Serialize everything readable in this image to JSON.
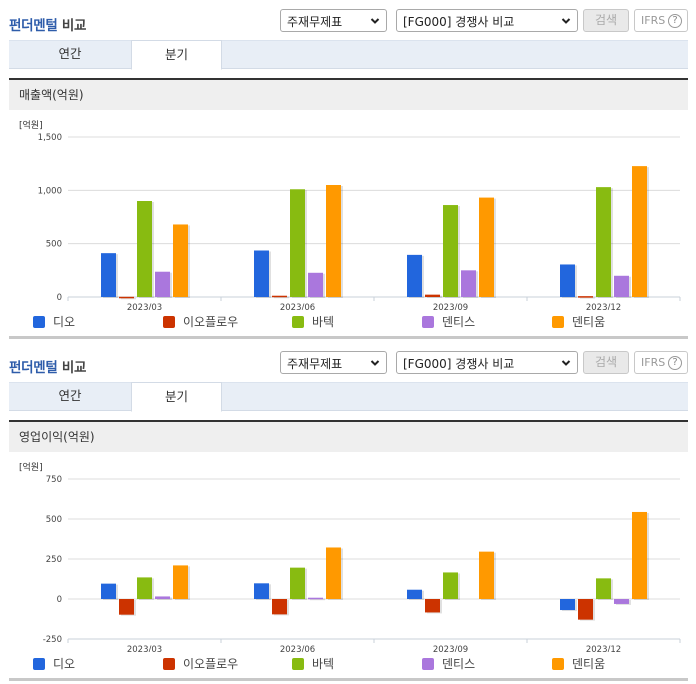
{
  "panels": [
    {
      "title_part1": "펀더멘털",
      "title_part2": "비교",
      "statement_select": "주재무제표",
      "compare_select": "[FG000] 경쟁사 비교",
      "search_button": "검색",
      "ifrs_button": "IFRS",
      "help_glyph": "?",
      "tabs": [
        {
          "label": "연간",
          "active": false
        },
        {
          "label": "분기",
          "active": true
        }
      ],
      "metric_label": "매출액(억원)",
      "unit_label": "[억원]"
    },
    {
      "title_part1": "펀더멘털",
      "title_part2": "비교",
      "statement_select": "주재무제표",
      "compare_select": "[FG000] 경쟁사 비교",
      "search_button": "검색",
      "ifrs_button": "IFRS",
      "help_glyph": "?",
      "tabs": [
        {
          "label": "연간",
          "active": false
        },
        {
          "label": "분기",
          "active": true
        }
      ],
      "metric_label": "영업이익(억원)",
      "unit_label": "[억원]"
    }
  ],
  "legend": [
    {
      "label": "디오",
      "color": "#2266dd"
    },
    {
      "label": "이오플로우",
      "color": "#cc3300"
    },
    {
      "label": "바텍",
      "color": "#88bb11"
    },
    {
      "label": "덴티스",
      "color": "#aa77dd"
    },
    {
      "label": "덴티움",
      "color": "#ff9900"
    }
  ],
  "chart_data": [
    {
      "type": "bar",
      "title": "매출액(억원)",
      "ylabel": "[억원]",
      "xlabel": "",
      "categories": [
        "2023/03",
        "2023/06",
        "2023/09",
        "2023/12"
      ],
      "yticks": [
        0,
        500,
        1000,
        1500
      ],
      "ytick_labels": [
        "0",
        "500",
        "1,000",
        "1,500"
      ],
      "ylim": [
        0,
        1500
      ],
      "grid": true,
      "legend_position": "bottom",
      "series": [
        {
          "name": "디오",
          "color": "#2266dd",
          "values": [
            411,
            436,
            395,
            305
          ]
        },
        {
          "name": "이오플로우",
          "color": "#cc3300",
          "values": [
            2,
            12,
            22,
            8
          ]
        },
        {
          "name": "바텍",
          "color": "#88bb11",
          "values": [
            900,
            1010,
            862,
            1030
          ]
        },
        {
          "name": "덴티스",
          "color": "#aa77dd",
          "values": [
            237,
            227,
            250,
            199
          ]
        },
        {
          "name": "덴티움",
          "color": "#ff9900",
          "values": [
            680,
            1050,
            932,
            1227
          ]
        }
      ]
    },
    {
      "type": "bar",
      "title": "영업이익(억원)",
      "ylabel": "[억원]",
      "xlabel": "",
      "categories": [
        "2023/03",
        "2023/06",
        "2023/09",
        "2023/12"
      ],
      "yticks": [
        -250,
        0,
        250,
        500,
        750
      ],
      "ytick_labels": [
        "-250",
        "0",
        "250",
        "500",
        "750"
      ],
      "ylim": [
        -250,
        750
      ],
      "grid": true,
      "legend_position": "bottom",
      "series": [
        {
          "name": "디오",
          "color": "#2266dd",
          "values": [
            96,
            98,
            58,
            -69
          ]
        },
        {
          "name": "이오플로우",
          "color": "#cc3300",
          "values": [
            -98,
            -96,
            -84,
            -129
          ]
        },
        {
          "name": "바텍",
          "color": "#88bb11",
          "values": [
            135,
            196,
            166,
            129
          ]
        },
        {
          "name": "덴티스",
          "color": "#aa77dd",
          "values": [
            16,
            8,
            0,
            -31
          ]
        },
        {
          "name": "덴티움",
          "color": "#ff9900",
          "values": [
            210,
            322,
            296,
            544
          ]
        }
      ]
    }
  ]
}
